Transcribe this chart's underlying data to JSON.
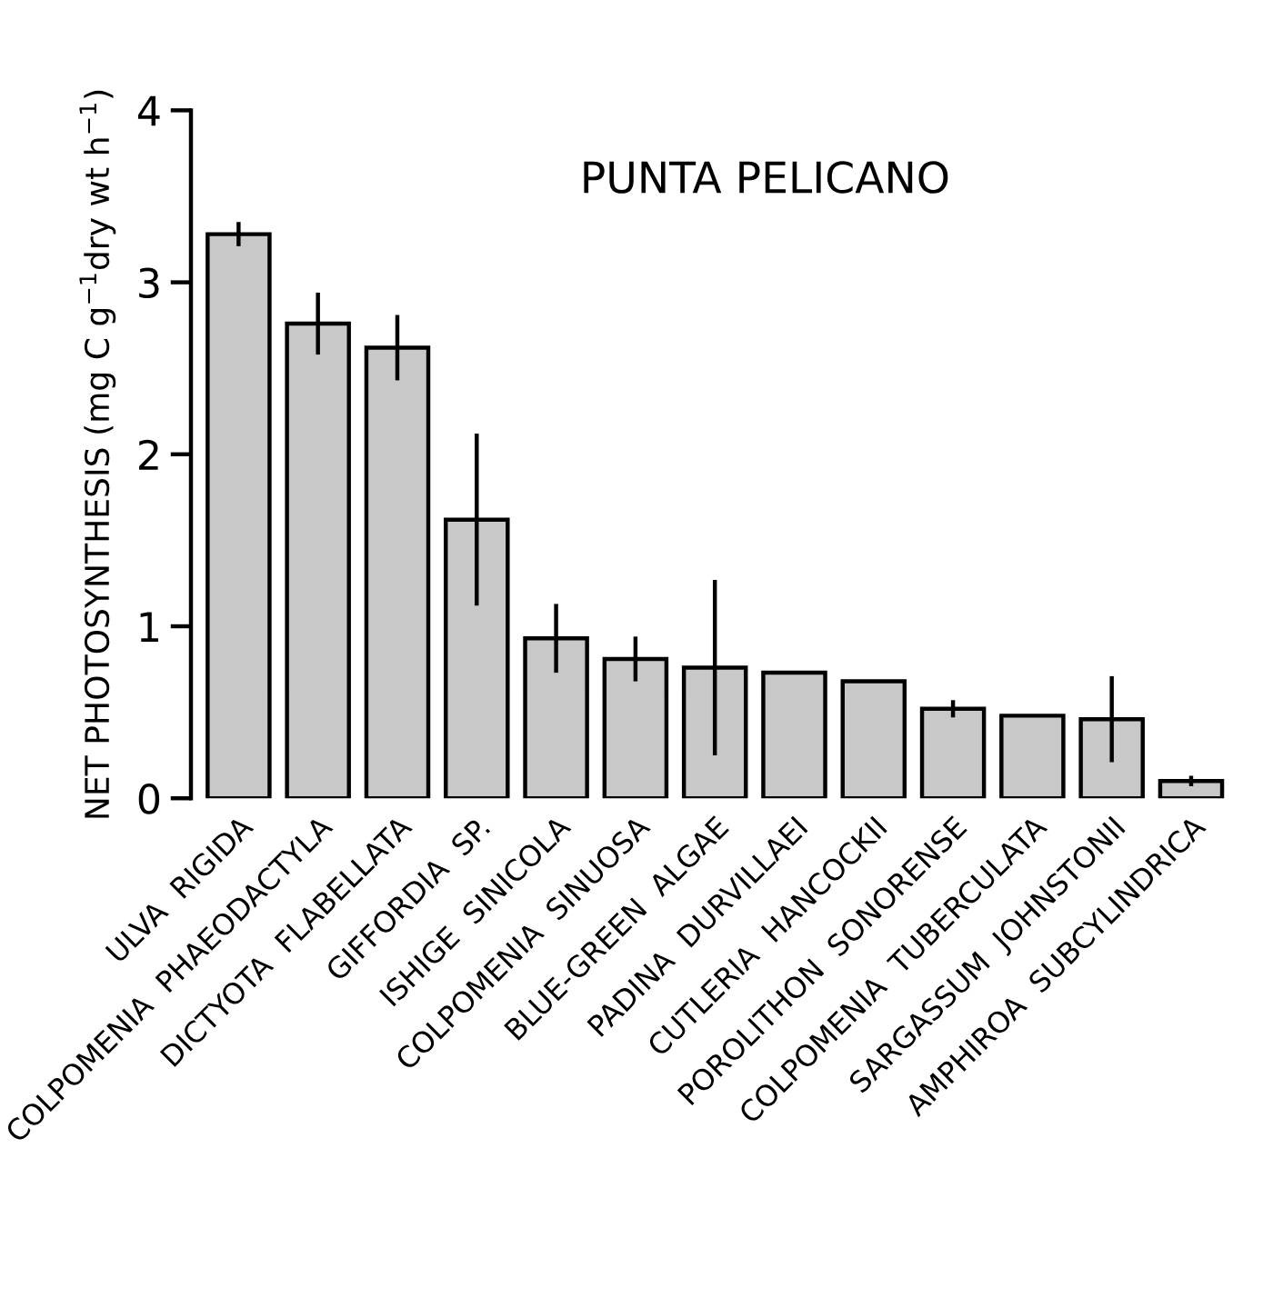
{
  "chart_data": {
    "type": "bar",
    "title": "PUNTA PELICANO",
    "ylabel": "NET PHOTOSYNTHESIS (mg C g$^{−1}$dry wt h$^{−1}$)",
    "categories": [
      "ULVA  RIGIDA",
      "COLPOMENIA  PHAEODACTYLA",
      "DICTYOTA  FLABELLATA",
      "GIFFORDIA  SP.",
      "ISHIGE  SINICOLA",
      "COLPOMENIA  SINUOSA",
      "BLUE-GREEN  ALGAE",
      "PADINA  DURVILLAEI",
      "CUTLERIA  HANCOCKII",
      "POROLITHON  SONORENSE",
      "COLPOMENIA  TUBERCULATA",
      "SARGASSUM  JOHNSTONII",
      "AMPHIROA  SUBCYLINDRICA"
    ],
    "values": [
      3.28,
      2.76,
      2.62,
      1.62,
      0.93,
      0.81,
      0.76,
      0.73,
      0.68,
      0.52,
      0.48,
      0.46,
      0.1
    ],
    "errors": [
      0.07,
      0.18,
      0.19,
      0.5,
      0.2,
      0.13,
      0.51,
      null,
      null,
      0.05,
      null,
      0.25,
      0.03
    ],
    "color": "#c8c8c8",
    "ylim": [
      0,
      4
    ],
    "yticks": [
      0,
      1,
      2,
      3,
      4
    ],
    "grid": false
  }
}
